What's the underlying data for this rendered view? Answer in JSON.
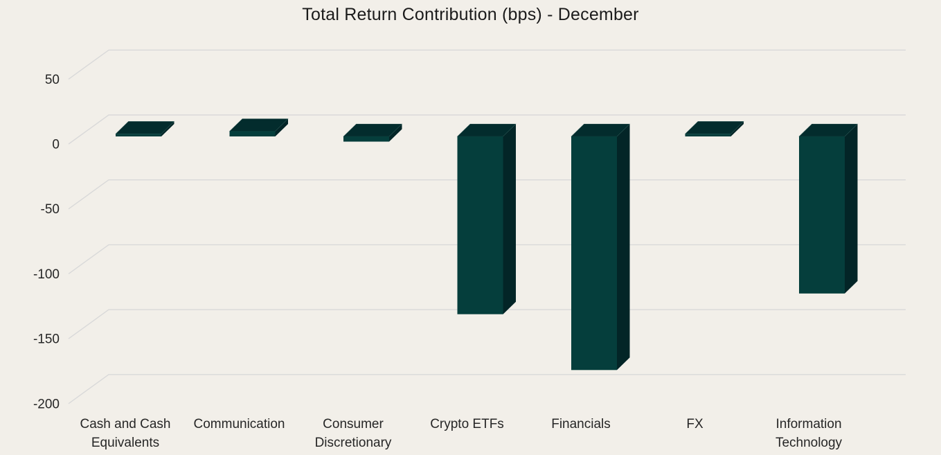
{
  "chart_data": {
    "type": "bar",
    "variant": "3d-column",
    "title": "Total Return Contribution (bps) - December",
    "unit": "bps",
    "categories": [
      "Cash and Cash Equivalents",
      "Communication",
      "Consumer Discretionary",
      "Crypto ETFs",
      "Financials",
      "FX",
      "Information Technology"
    ],
    "category_label_lines": [
      [
        "Cash and Cash",
        "Equivalents"
      ],
      [
        "Communication"
      ],
      [
        "Consumer",
        "Discretionary"
      ],
      [
        "Crypto ETFs"
      ],
      [
        "Financials"
      ],
      [
        "FX"
      ],
      [
        "Information",
        "Technology"
      ]
    ],
    "values": [
      2,
      4,
      -4,
      -137,
      -180,
      2,
      -121
    ],
    "ylim": [
      -200,
      50
    ],
    "yticks": [
      50,
      0,
      -50,
      -100,
      -150,
      -200
    ],
    "ytick_labels": [
      "50",
      "0",
      "-50",
      "-100",
      "-150",
      "-200"
    ],
    "grid": true,
    "legend": false,
    "colors": {
      "background": "#f2efe9",
      "gridline": "#d9d9d9",
      "bar_front": "#053e3c",
      "bar_top": "#032c2d",
      "bar_side": "#032527",
      "bar_edge_highlight": "#2f615c",
      "axis_text": "#262626",
      "title_text": "#1b1b1b"
    }
  }
}
